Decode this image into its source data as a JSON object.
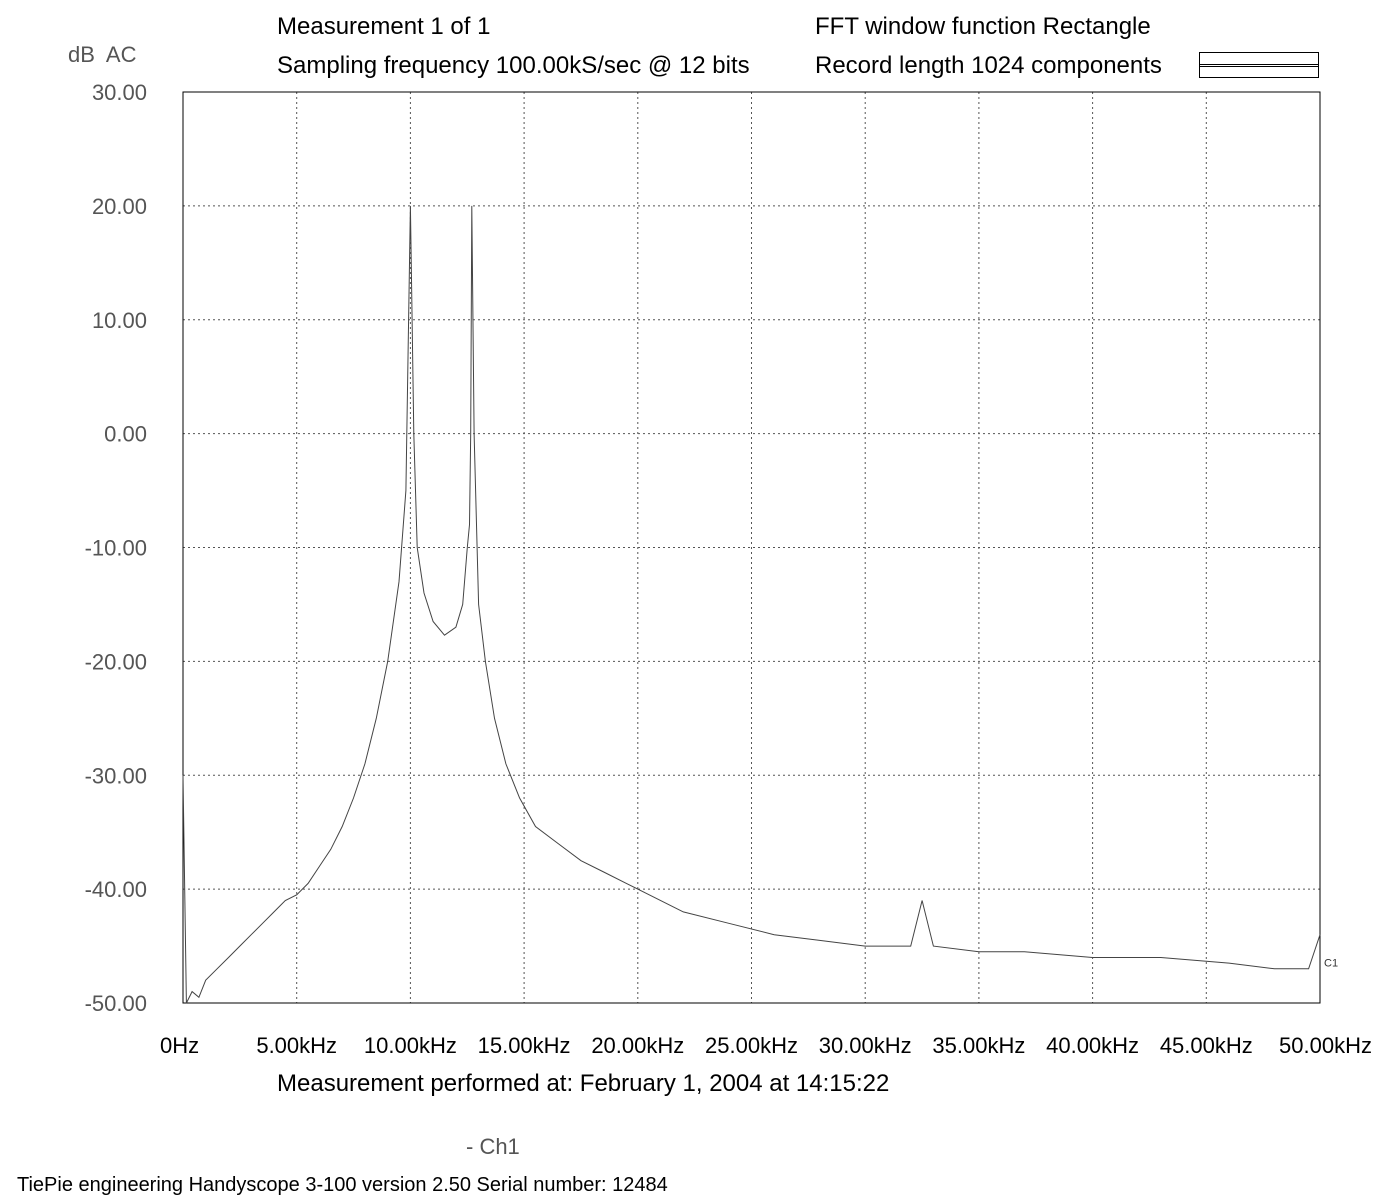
{
  "header": {
    "measurement": "Measurement 1 of 1",
    "sampling": "Sampling frequency 100.00kS/sec @ 12 bits",
    "window_function": "FFT window function Rectangle",
    "record_length": "Record length 1024 components"
  },
  "footer": {
    "measured_at": "Measurement performed at:  February 1, 2004 at 14:15:22",
    "channel_legend": "- Ch1",
    "device_info": "TiePie engineering  Handyscope 3-100  version 2.50  Serial number: 12484"
  },
  "chart_data": {
    "type": "line",
    "ylabel": "dB  AC",
    "xlabel": "",
    "trace_label": "C1",
    "xlim": [
      0,
      50000
    ],
    "ylim": [
      -50,
      30
    ],
    "grid": true,
    "legend_position": "top-right",
    "x_tick_labels": [
      "0Hz",
      "5.00kHz",
      "10.00kHz",
      "15.00kHz",
      "20.00kHz",
      "25.00kHz",
      "30.00kHz",
      "35.00kHz",
      "40.00kHz",
      "45.00kHz",
      "50.00kHz"
    ],
    "y_tick_labels": [
      "30.00",
      "20.00",
      "10.00",
      "0.00",
      "-10.00",
      "-20.00",
      "-30.00",
      "-40.00",
      "-50.00"
    ],
    "y_ticks": [
      30,
      20,
      10,
      0,
      -10,
      -20,
      -30,
      -40,
      -50
    ],
    "series": [
      {
        "points": [
          [
            0,
            -30
          ],
          [
            150,
            -50
          ],
          [
            400,
            -49
          ],
          [
            700,
            -49.5
          ],
          [
            1000,
            -48
          ],
          [
            1500,
            -47
          ],
          [
            2000,
            -46
          ],
          [
            2500,
            -45
          ],
          [
            3000,
            -44
          ],
          [
            3500,
            -43
          ],
          [
            4000,
            -42
          ],
          [
            4500,
            -41
          ],
          [
            5000,
            -40.5
          ],
          [
            5500,
            -39.5
          ],
          [
            6000,
            -38
          ],
          [
            6500,
            -36.5
          ],
          [
            7000,
            -34.5
          ],
          [
            7500,
            -32
          ],
          [
            8000,
            -29
          ],
          [
            8500,
            -25
          ],
          [
            9000,
            -20
          ],
          [
            9500,
            -13
          ],
          [
            9800,
            -5
          ],
          [
            10000,
            20
          ],
          [
            10150,
            0
          ],
          [
            10300,
            -10
          ],
          [
            10600,
            -14
          ],
          [
            11000,
            -16.5
          ],
          [
            11500,
            -17.7
          ],
          [
            12000,
            -17
          ],
          [
            12300,
            -15
          ],
          [
            12500,
            -10
          ],
          [
            12600,
            -8
          ],
          [
            12650,
            0
          ],
          [
            12700,
            20
          ],
          [
            12800,
            0
          ],
          [
            13000,
            -15
          ],
          [
            13300,
            -20
          ],
          [
            13700,
            -25
          ],
          [
            14200,
            -29
          ],
          [
            14800,
            -32
          ],
          [
            15500,
            -34.5
          ],
          [
            16500,
            -36
          ],
          [
            17500,
            -37.5
          ],
          [
            18500,
            -38.5
          ],
          [
            19500,
            -39.5
          ],
          [
            20500,
            -40.5
          ],
          [
            22000,
            -42
          ],
          [
            24000,
            -43
          ],
          [
            26000,
            -44
          ],
          [
            28000,
            -44.5
          ],
          [
            30000,
            -45
          ],
          [
            32000,
            -45
          ],
          [
            32500,
            -41
          ],
          [
            33000,
            -45
          ],
          [
            35000,
            -45.5
          ],
          [
            37000,
            -45.5
          ],
          [
            40000,
            -46
          ],
          [
            43000,
            -46
          ],
          [
            46000,
            -46.5
          ],
          [
            48000,
            -47
          ],
          [
            49500,
            -47
          ],
          [
            50000,
            -44
          ]
        ]
      }
    ]
  }
}
